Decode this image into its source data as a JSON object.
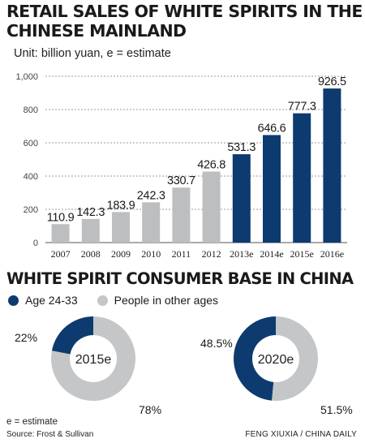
{
  "header": {
    "title": "RETAIL SALES OF WHITE SPIRITS IN THE CHINESE MAINLAND",
    "unit": "Unit: billion yuan, e = estimate"
  },
  "colors": {
    "actual": "#bcbec0",
    "estimate": "#0d3b70",
    "grid": "#9a9a9a",
    "other_ages": "#c4c6c8"
  },
  "chart_data": [
    {
      "type": "bar",
      "title": "RETAIL SALES OF WHITE SPIRITS IN THE CHINESE MAINLAND",
      "subtitle": "Unit: billion yuan, e = estimate",
      "categories": [
        "2007",
        "2008",
        "2009",
        "2010",
        "2011",
        "2012",
        "2013e",
        "2014e",
        "2015e",
        "2016e"
      ],
      "values": [
        110.9,
        142.3,
        183.9,
        242.3,
        330.7,
        426.8,
        531.3,
        646.6,
        777.3,
        926.5
      ],
      "value_labels": [
        "110.9",
        "142.3",
        "183.9",
        "242.3",
        "330.7",
        "426.8",
        "531.3",
        "646.6",
        "777.3",
        "926.5"
      ],
      "estimate": [
        false,
        false,
        false,
        false,
        false,
        false,
        true,
        true,
        true,
        true
      ],
      "yticks": [
        0,
        200,
        400,
        600,
        800,
        1000
      ],
      "ytick_labels": [
        "0",
        "200",
        "400",
        "600",
        "800",
        "1,000"
      ],
      "ylim": [
        0,
        1000
      ],
      "grid": true,
      "xlabel": "",
      "ylabel": ""
    },
    {
      "type": "pie",
      "title": "WHITE SPIRIT CONSUMER BASE IN CHINA",
      "center_label": "2015e",
      "labels": [
        "Age 24-33",
        "People in other ages"
      ],
      "values": [
        22,
        78
      ],
      "value_labels": [
        "22%",
        "78%"
      ]
    },
    {
      "type": "pie",
      "title": "WHITE SPIRIT CONSUMER BASE IN CHINA",
      "center_label": "2020e",
      "labels": [
        "Age 24-33",
        "People in other ages"
      ],
      "values": [
        48.5,
        51.5
      ],
      "value_labels": [
        "48.5%",
        "51.5%"
      ]
    }
  ],
  "section2": {
    "title": "WHITE SPIRIT CONSUMER BASE IN CHINA"
  },
  "legend": {
    "young": "Age 24-33",
    "other": "People in other ages"
  },
  "footer": {
    "note": "e = estimate",
    "source": "Source: Frost & Sullivan",
    "credit": "FENG XIUXIA / CHINA DAILY"
  }
}
